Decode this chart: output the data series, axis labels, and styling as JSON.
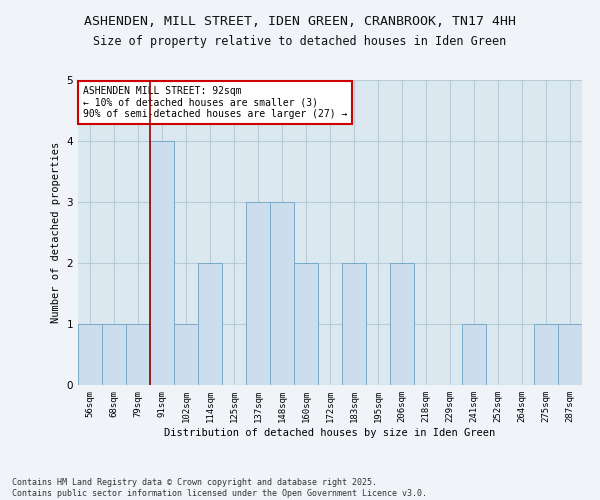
{
  "title_line1": "ASHENDEN, MILL STREET, IDEN GREEN, CRANBROOK, TN17 4HH",
  "title_line2": "Size of property relative to detached houses in Iden Green",
  "xlabel": "Distribution of detached houses by size in Iden Green",
  "ylabel": "Number of detached properties",
  "categories": [
    "56sqm",
    "68sqm",
    "79sqm",
    "91sqm",
    "102sqm",
    "114sqm",
    "125sqm",
    "137sqm",
    "148sqm",
    "160sqm",
    "172sqm",
    "183sqm",
    "195sqm",
    "206sqm",
    "218sqm",
    "229sqm",
    "241sqm",
    "252sqm",
    "264sqm",
    "275sqm",
    "287sqm"
  ],
  "values": [
    1,
    1,
    1,
    4,
    1,
    2,
    0,
    3,
    3,
    2,
    0,
    2,
    0,
    2,
    0,
    0,
    1,
    0,
    0,
    1,
    1
  ],
  "bar_color": "#ccdded",
  "bar_edge_color": "#7aaac8",
  "highlight_index": 3,
  "highlight_line_color": "#990000",
  "annotation_text": "ASHENDEN MILL STREET: 92sqm\n← 10% of detached houses are smaller (3)\n90% of semi-detached houses are larger (27) →",
  "annotation_box_edge": "#cc0000",
  "ylim": [
    0,
    5
  ],
  "yticks": [
    0,
    1,
    2,
    3,
    4,
    5
  ],
  "plot_bg_color": "#dce8f0",
  "grid_color": "#b8ccd8",
  "fig_bg_color": "#f0f4f8",
  "footer_line1": "Contains HM Land Registry data © Crown copyright and database right 2025.",
  "footer_line2": "Contains public sector information licensed under the Open Government Licence v3.0.",
  "title_fontsize": 9.5,
  "subtitle_fontsize": 8.5,
  "axis_label_fontsize": 7.5,
  "tick_fontsize": 6.5,
  "annotation_fontsize": 7,
  "footer_fontsize": 6
}
